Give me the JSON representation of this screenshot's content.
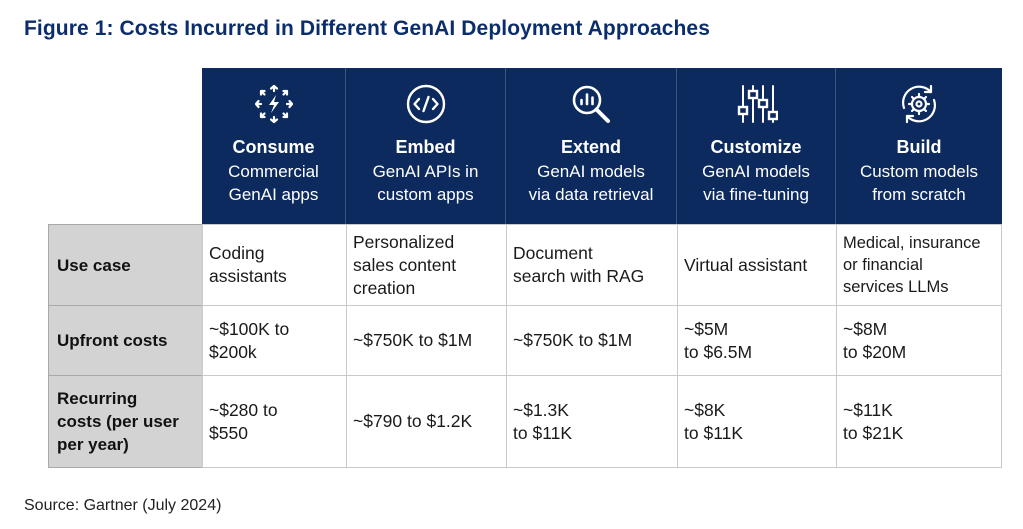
{
  "title": "Figure 1: Costs Incurred in Different GenAI Deployment Approaches",
  "columns": [
    {
      "icon": "arrows-burst-icon",
      "name": "Consume",
      "sub1": "Commercial",
      "sub2": "GenAI apps"
    },
    {
      "icon": "code-icon",
      "name": "Embed",
      "sub1": "GenAI APIs in",
      "sub2": "custom apps"
    },
    {
      "icon": "magnifier-chart-icon",
      "name": "Extend",
      "sub1": "GenAI models",
      "sub2": "via data retrieval"
    },
    {
      "icon": "sliders-icon",
      "name": "Customize",
      "sub1": "GenAI models",
      "sub2": "via fine-tuning"
    },
    {
      "icon": "gear-refresh-icon",
      "name": "Build",
      "sub1": "Custom models",
      "sub2": "from scratch"
    }
  ],
  "rows": [
    {
      "label_lines": [
        "Use case"
      ],
      "cells": [
        [
          "Coding",
          "assistants"
        ],
        [
          "Personalized",
          "sales content",
          "creation"
        ],
        [
          "Document",
          "search with RAG"
        ],
        [
          "Virtual assistant"
        ],
        [
          "Medical, insurance",
          "or financial",
          "services LLMs"
        ]
      ]
    },
    {
      "label_lines": [
        "Upfront costs"
      ],
      "cells": [
        [
          "~$100K to",
          "$200k"
        ],
        [
          "~$750K to $1M"
        ],
        [
          "~$750K to $1M"
        ],
        [
          "~$5M",
          "to $6.5M"
        ],
        [
          "~$8M",
          "to $20M"
        ]
      ]
    },
    {
      "label_lines": [
        "Recurring",
        "costs (per user",
        "per year)"
      ],
      "cells": [
        [
          "~$280 to",
          "$550"
        ],
        [
          "~$790 to $1.2K"
        ],
        [
          "~$1.3K",
          "to $11K"
        ],
        [
          "~$8K",
          "to $11K"
        ],
        [
          "~$11K",
          "to $21K"
        ]
      ]
    }
  ],
  "source": "Source: Gartner (July 2024)",
  "colors": {
    "header_bg": "#0c2a5e",
    "title": "#0b2d6b",
    "rowhead_bg": "#d3d3d3"
  }
}
